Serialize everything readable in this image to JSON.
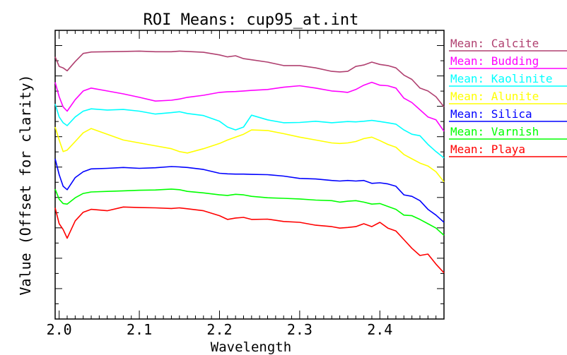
{
  "chart_data": {
    "type": "line",
    "title": "ROI Means: cup95_at.int",
    "xlabel": "Wavelength",
    "ylabel": "Value (Offset for clarity)",
    "xlim": [
      1.995,
      2.48
    ],
    "ylim": [
      0,
      1
    ],
    "x_ticks": [
      "2.0",
      "2.1",
      "2.2",
      "2.3",
      "2.4"
    ],
    "y_tick_labels": "none",
    "grid": false,
    "legend_position": "right-outside",
    "x": [
      1.995,
      2.0,
      2.005,
      2.01,
      2.02,
      2.03,
      2.04,
      2.06,
      2.08,
      2.1,
      2.12,
      2.14,
      2.15,
      2.16,
      2.18,
      2.2,
      2.21,
      2.22,
      2.23,
      2.24,
      2.26,
      2.28,
      2.3,
      2.32,
      2.34,
      2.35,
      2.36,
      2.37,
      2.38,
      2.39,
      2.4,
      2.41,
      2.42,
      2.43,
      2.44,
      2.45,
      2.46,
      2.47,
      2.48
    ],
    "series": [
      {
        "name": "Mean: Calcite",
        "color": "#b04070",
        "values": [
          0.908,
          0.875,
          0.87,
          0.86,
          0.892,
          0.92,
          0.925,
          0.926,
          0.927,
          0.928,
          0.926,
          0.926,
          0.928,
          0.927,
          0.924,
          0.915,
          0.908,
          0.912,
          0.902,
          0.898,
          0.89,
          0.878,
          0.878,
          0.87,
          0.858,
          0.856,
          0.858,
          0.875,
          0.88,
          0.89,
          0.882,
          0.878,
          0.87,
          0.845,
          0.83,
          0.8,
          0.79,
          0.77,
          0.735
        ]
      },
      {
        "name": "Mean: Budding",
        "color": "#ff00ff",
        "values": [
          0.82,
          0.77,
          0.735,
          0.72,
          0.76,
          0.79,
          0.8,
          0.79,
          0.78,
          0.768,
          0.755,
          0.758,
          0.762,
          0.768,
          0.775,
          0.785,
          0.787,
          0.788,
          0.79,
          0.792,
          0.795,
          0.803,
          0.808,
          0.8,
          0.79,
          0.788,
          0.785,
          0.795,
          0.81,
          0.82,
          0.81,
          0.808,
          0.8,
          0.765,
          0.75,
          0.725,
          0.7,
          0.69,
          0.65
        ]
      },
      {
        "name": "Mean: Kaolinite",
        "color": "#00ffff",
        "values": [
          0.745,
          0.7,
          0.68,
          0.67,
          0.7,
          0.72,
          0.728,
          0.724,
          0.726,
          0.72,
          0.71,
          0.715,
          0.718,
          0.712,
          0.705,
          0.685,
          0.665,
          0.655,
          0.665,
          0.706,
          0.69,
          0.68,
          0.681,
          0.685,
          0.68,
          0.682,
          0.684,
          0.683,
          0.685,
          0.688,
          0.684,
          0.68,
          0.675,
          0.655,
          0.64,
          0.635,
          0.605,
          0.58,
          0.558
        ]
      },
      {
        "name": "Mean: Alunite",
        "color": "#ffff00",
        "values": [
          0.665,
          0.62,
          0.58,
          0.585,
          0.615,
          0.645,
          0.66,
          0.64,
          0.62,
          0.61,
          0.6,
          0.59,
          0.58,
          0.575,
          0.59,
          0.608,
          0.62,
          0.63,
          0.64,
          0.655,
          0.653,
          0.642,
          0.63,
          0.62,
          0.61,
          0.608,
          0.61,
          0.615,
          0.625,
          0.63,
          0.618,
          0.605,
          0.595,
          0.57,
          0.555,
          0.54,
          0.53,
          0.51,
          0.475
        ]
      },
      {
        "name": "Mean: Silica",
        "color": "#0000ff",
        "values": [
          0.555,
          0.5,
          0.46,
          0.448,
          0.49,
          0.51,
          0.52,
          0.522,
          0.525,
          0.522,
          0.524,
          0.528,
          0.527,
          0.525,
          0.518,
          0.505,
          0.503,
          0.502,
          0.502,
          0.501,
          0.5,
          0.495,
          0.487,
          0.485,
          0.48,
          0.478,
          0.48,
          0.478,
          0.48,
          0.47,
          0.472,
          0.468,
          0.46,
          0.43,
          0.425,
          0.41,
          0.38,
          0.36,
          0.335
        ]
      },
      {
        "name": "Mean: Varnish",
        "color": "#00ff00",
        "values": [
          0.45,
          0.415,
          0.4,
          0.398,
          0.42,
          0.435,
          0.44,
          0.442,
          0.444,
          0.446,
          0.447,
          0.45,
          0.448,
          0.442,
          0.437,
          0.43,
          0.428,
          0.432,
          0.43,
          0.425,
          0.42,
          0.418,
          0.416,
          0.412,
          0.41,
          0.405,
          0.408,
          0.41,
          0.405,
          0.398,
          0.4,
          0.39,
          0.38,
          0.36,
          0.358,
          0.345,
          0.33,
          0.315,
          0.29
        ]
      },
      {
        "name": "Mean: Playa",
        "color": "#ff0000",
        "values": [
          0.385,
          0.33,
          0.31,
          0.28,
          0.34,
          0.37,
          0.38,
          0.375,
          0.388,
          0.386,
          0.385,
          0.383,
          0.385,
          0.382,
          0.375,
          0.358,
          0.345,
          0.35,
          0.352,
          0.345,
          0.346,
          0.338,
          0.335,
          0.325,
          0.32,
          0.315,
          0.317,
          0.32,
          0.33,
          0.32,
          0.335,
          0.315,
          0.305,
          0.275,
          0.245,
          0.22,
          0.225,
          0.19,
          0.16
        ]
      }
    ]
  }
}
